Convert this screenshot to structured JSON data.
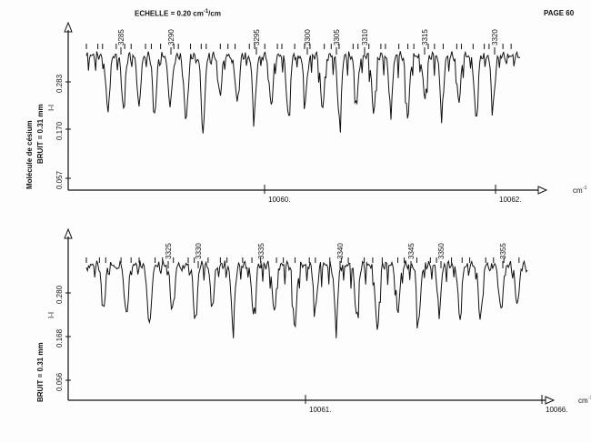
{
  "header": {
    "echelle_label": "ECHELLE",
    "echelle_value": "= 0.20 cm",
    "echelle_exp": "-1",
    "echelle_unit": "/cm",
    "page_label": "PAGE 60"
  },
  "side_labels": {
    "molecule": "Molécule de césium",
    "bruit_top": "BRUIT = 0.31 mm",
    "bruit_bottom": "BRUIT = 0.31 mm",
    "ref_mark": "I-I"
  },
  "colors": {
    "ink": "#111111",
    "paper": "#fdfdfd"
  },
  "chart_data": [
    {
      "type": "line",
      "x_unit": "cm-1",
      "x_range": [
        10059.1,
        10062.15
      ],
      "x_ticks": [
        "10060.",
        "10062."
      ],
      "y_ticks": [
        "0.283",
        "0.170",
        "0.057"
      ],
      "line_numbers": [
        "3285",
        "3290",
        "3295",
        "3300",
        "3305",
        "3310",
        "3315",
        "3320"
      ],
      "tick_marks": 46,
      "baseline": 0.283,
      "absorption_lines": [
        {
          "x": 10059.25,
          "depth": 0.14
        },
        {
          "x": 10059.36,
          "depth": 0.13
        },
        {
          "x": 10059.47,
          "depth": 0.12
        },
        {
          "x": 10059.58,
          "depth": 0.15
        },
        {
          "x": 10059.69,
          "depth": 0.13
        },
        {
          "x": 10059.8,
          "depth": 0.17
        },
        {
          "x": 10059.92,
          "depth": 0.19
        },
        {
          "x": 10060.04,
          "depth": 0.1
        },
        {
          "x": 10060.16,
          "depth": 0.12
        },
        {
          "x": 10060.28,
          "depth": 0.15
        },
        {
          "x": 10060.4,
          "depth": 0.13
        },
        {
          "x": 10060.52,
          "depth": 0.16
        },
        {
          "x": 10060.64,
          "depth": 0.11
        },
        {
          "x": 10060.76,
          "depth": 0.14
        },
        {
          "x": 10060.88,
          "depth": 0.17
        },
        {
          "x": 10061.0,
          "depth": 0.12
        },
        {
          "x": 10061.12,
          "depth": 0.15
        },
        {
          "x": 10061.24,
          "depth": 0.13
        },
        {
          "x": 10061.36,
          "depth": 0.16
        },
        {
          "x": 10061.48,
          "depth": 0.11
        },
        {
          "x": 10061.6,
          "depth": 0.14
        },
        {
          "x": 10061.72,
          "depth": 0.12
        },
        {
          "x": 10061.84,
          "depth": 0.16
        },
        {
          "x": 10061.96,
          "depth": 0.13
        }
      ]
    },
    {
      "type": "line",
      "x_unit": "cm-1",
      "x_range": [
        10062.2,
        10066.05
      ],
      "x_ticks": [
        "10061.",
        "10066."
      ],
      "y_ticks": [
        "0.280",
        "0.168",
        "0.056"
      ],
      "line_numbers": [
        "3325",
        "3330",
        "3335",
        "3340",
        "3345",
        "3350",
        "3355"
      ],
      "tick_marks": 40,
      "baseline": 0.28,
      "absorption_lines": [
        {
          "x": 10062.35,
          "depth": 0.11
        },
        {
          "x": 10062.55,
          "depth": 0.13
        },
        {
          "x": 10062.75,
          "depth": 0.16
        },
        {
          "x": 10062.95,
          "depth": 0.12
        },
        {
          "x": 10063.15,
          "depth": 0.14
        },
        {
          "x": 10063.3,
          "depth": 0.1
        },
        {
          "x": 10063.48,
          "depth": 0.15
        },
        {
          "x": 10063.66,
          "depth": 0.13
        },
        {
          "x": 10063.84,
          "depth": 0.12
        },
        {
          "x": 10064.02,
          "depth": 0.16
        },
        {
          "x": 10064.2,
          "depth": 0.11
        },
        {
          "x": 10064.38,
          "depth": 0.14
        },
        {
          "x": 10064.56,
          "depth": 0.13
        },
        {
          "x": 10064.74,
          "depth": 0.17
        },
        {
          "x": 10064.92,
          "depth": 0.12
        },
        {
          "x": 10065.1,
          "depth": 0.15
        },
        {
          "x": 10065.28,
          "depth": 0.11
        },
        {
          "x": 10065.46,
          "depth": 0.13
        },
        {
          "x": 10065.64,
          "depth": 0.14
        },
        {
          "x": 10065.82,
          "depth": 0.12
        },
        {
          "x": 10065.96,
          "depth": 0.1
        }
      ]
    }
  ]
}
